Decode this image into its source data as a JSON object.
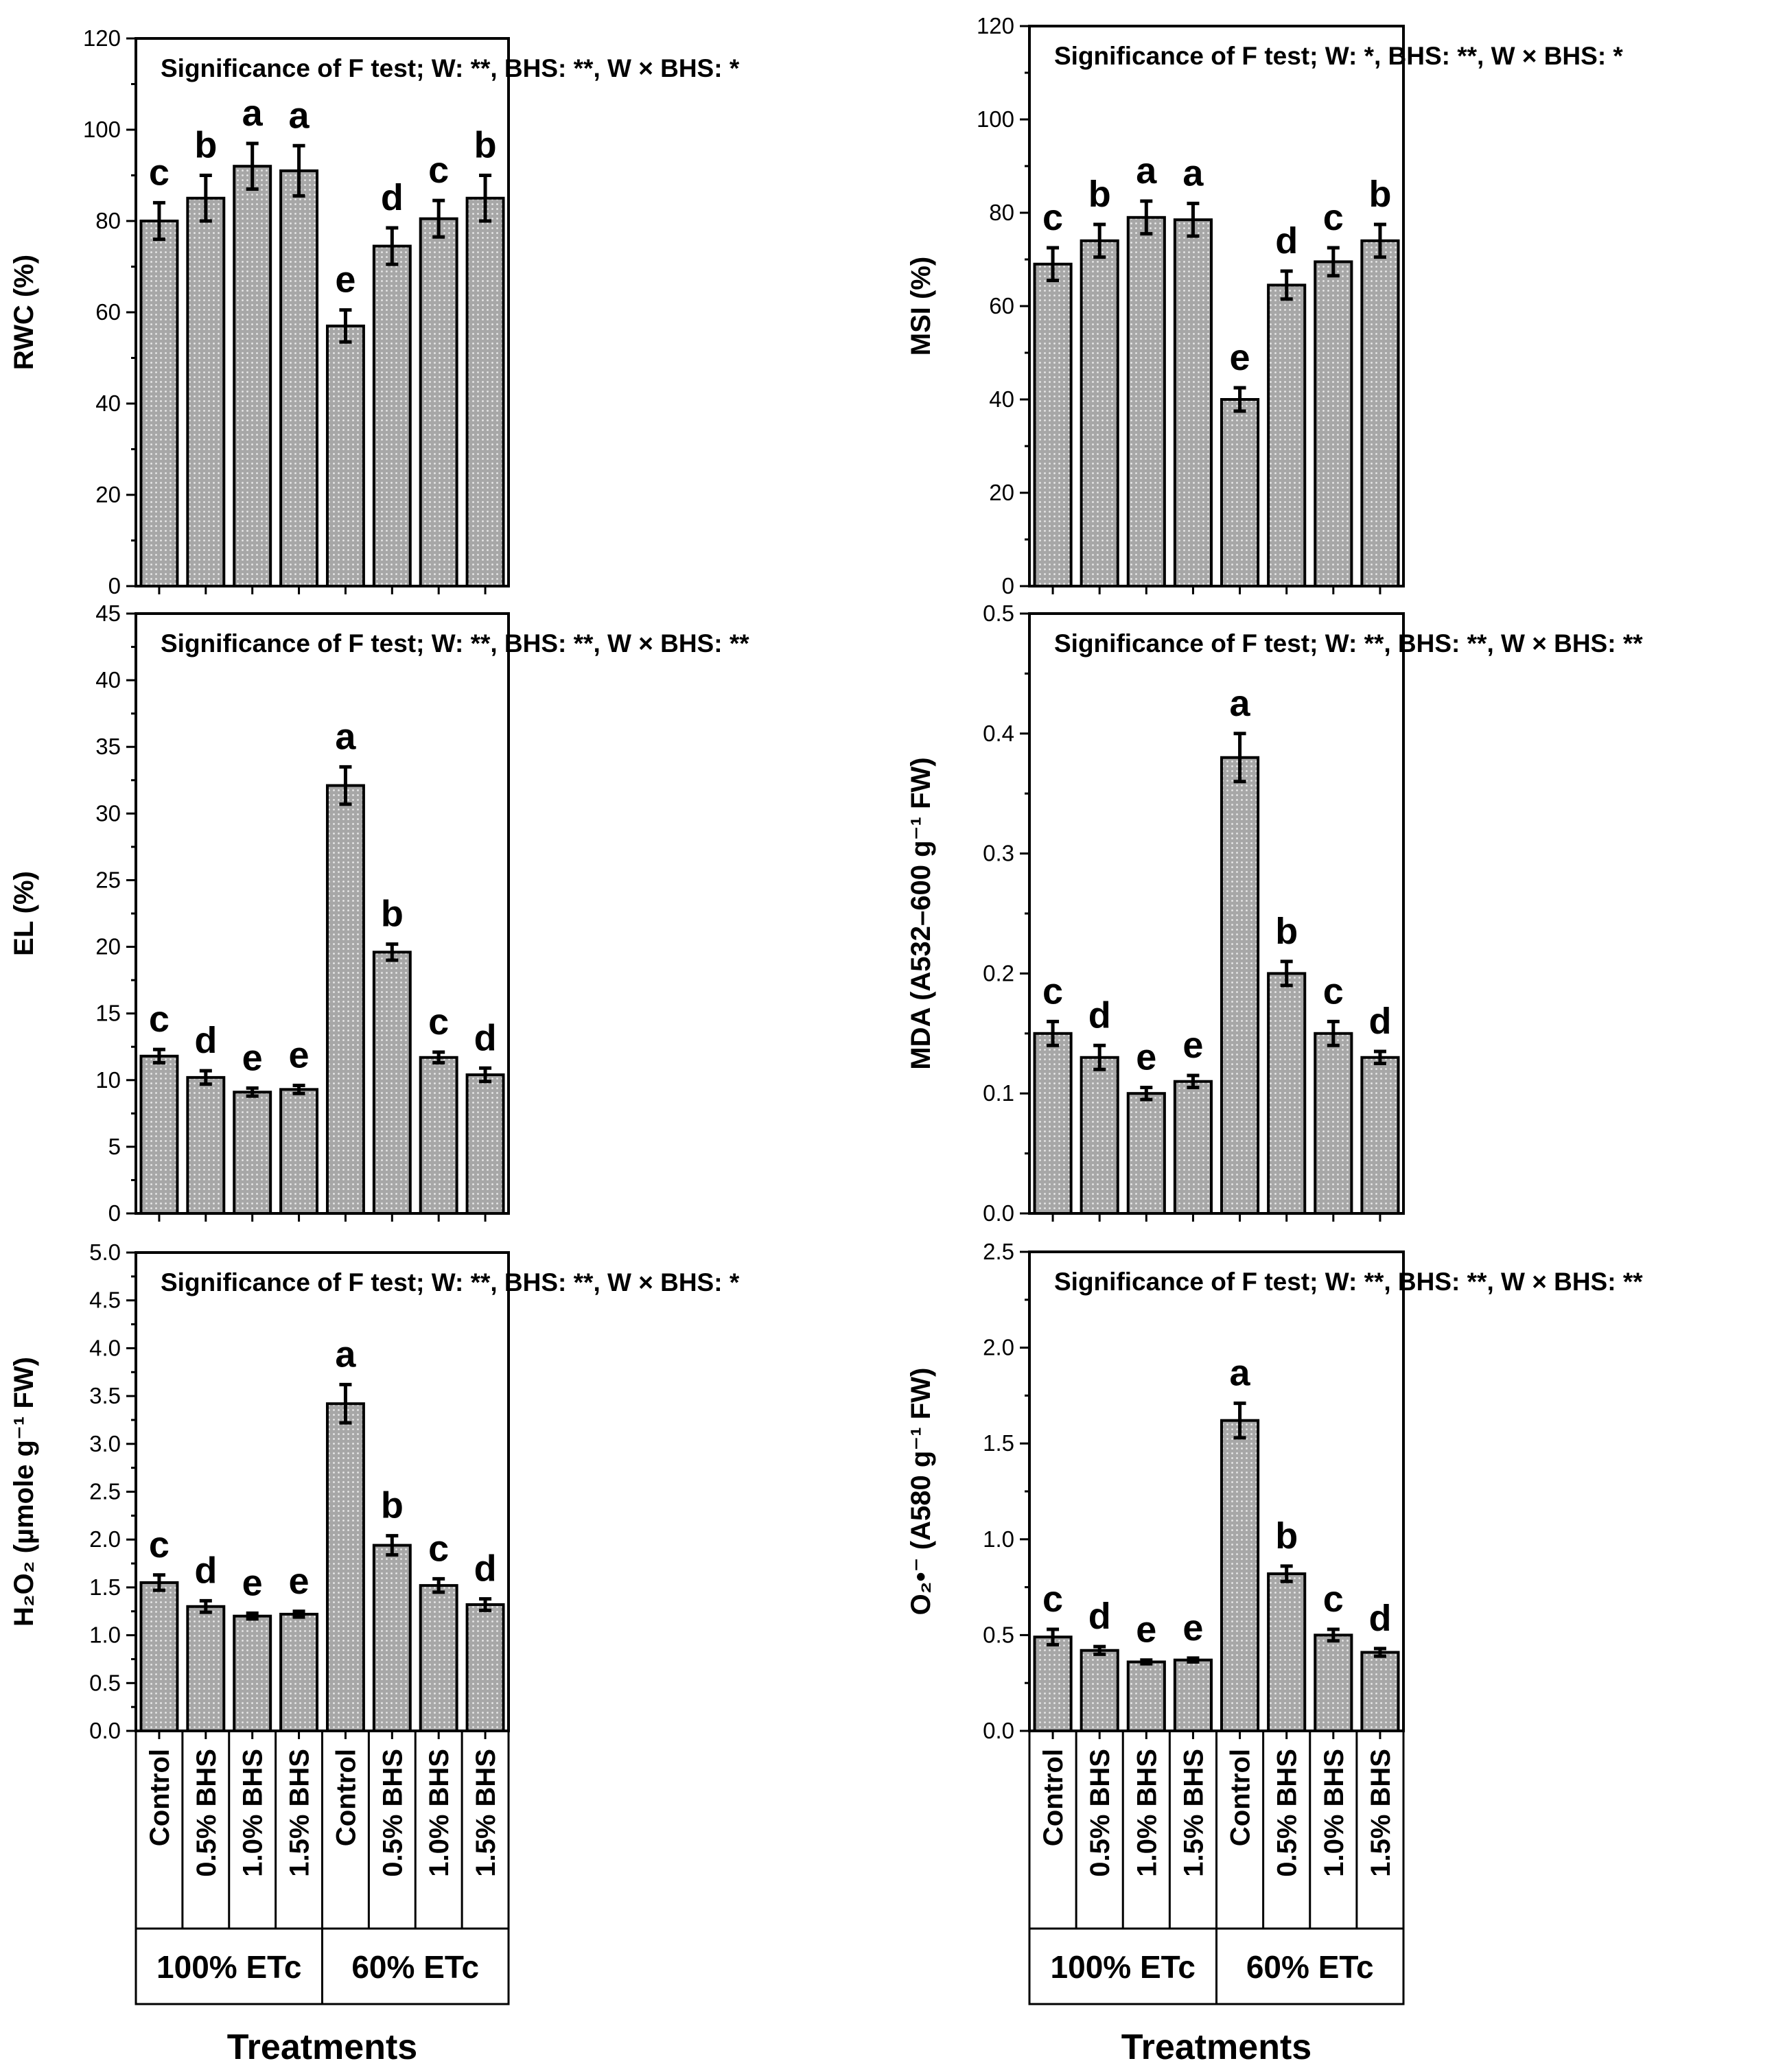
{
  "chart_data": [
    {
      "id": "rwc",
      "type": "bar",
      "title": "Significance of F test; W: **, BHS: **, W × BHS: *",
      "ylabel": "RWC (%)",
      "ylim": [
        0,
        120
      ],
      "yticks": [
        0,
        20,
        40,
        60,
        80,
        100,
        120
      ],
      "tick_decimals": 0,
      "categories": [
        "Control",
        "0.5% BHS",
        "1.0% BHS",
        "1.5% BHS",
        "Control",
        "0.5% BHS",
        "1.0% BHS",
        "1.5% BHS"
      ],
      "values": [
        80,
        85,
        92,
        91,
        57,
        74.5,
        80.5,
        85
      ],
      "errors": [
        4,
        5,
        5,
        5.5,
        3.5,
        4,
        4,
        5
      ],
      "letters": [
        "c",
        "b",
        "a",
        "a",
        "e",
        "d",
        "c",
        "b"
      ]
    },
    {
      "id": "msi",
      "type": "bar",
      "title": "Significance of F test; W: *, BHS: **, W × BHS: *",
      "ylabel": "MSI (%)",
      "ylim": [
        0,
        120
      ],
      "yticks": [
        0,
        20,
        40,
        60,
        80,
        100,
        120
      ],
      "tick_decimals": 0,
      "categories": [
        "Control",
        "0.5% BHS",
        "1.0% BHS",
        "1.5% BHS",
        "Control",
        "0.5% BHS",
        "1.0% BHS",
        "1.5% BHS"
      ],
      "values": [
        69,
        74,
        79,
        78.5,
        40,
        64.5,
        69.5,
        74
      ],
      "errors": [
        3.5,
        3.5,
        3.5,
        3.5,
        2.5,
        3,
        3,
        3.5
      ],
      "letters": [
        "c",
        "b",
        "a",
        "a",
        "e",
        "d",
        "c",
        "b"
      ]
    },
    {
      "id": "el",
      "type": "bar",
      "title": "Significance of F test; W: **, BHS: **, W × BHS: **",
      "ylabel": "EL (%)",
      "ylim": [
        0,
        45
      ],
      "yticks": [
        0,
        5,
        10,
        15,
        20,
        25,
        30,
        35,
        40,
        45
      ],
      "tick_decimals": 0,
      "categories": [
        "Control",
        "0.5% BHS",
        "1.0% BHS",
        "1.5% BHS",
        "Control",
        "0.5% BHS",
        "1.0% BHS",
        "1.5% BHS"
      ],
      "values": [
        11.8,
        10.2,
        9.1,
        9.3,
        32.1,
        19.6,
        11.7,
        10.4
      ],
      "errors": [
        0.5,
        0.5,
        0.3,
        0.3,
        1.4,
        0.6,
        0.4,
        0.5
      ],
      "letters": [
        "c",
        "d",
        "e",
        "e",
        "a",
        "b",
        "c",
        "d"
      ]
    },
    {
      "id": "mda",
      "type": "bar",
      "title": "Significance of F test; W: **, BHS: **, W × BHS: **",
      "ylabel": "MDA (A532–600 g⁻¹ FW)",
      "ylim": [
        0,
        0.5
      ],
      "yticks": [
        0,
        0.1,
        0.2,
        0.3,
        0.4,
        0.5
      ],
      "tick_decimals": 1,
      "categories": [
        "Control",
        "0.5% BHS",
        "1.0% BHS",
        "1.5% BHS",
        "Control",
        "0.5% BHS",
        "1.0% BHS",
        "1.5% BHS"
      ],
      "values": [
        0.15,
        0.13,
        0.1,
        0.11,
        0.38,
        0.2,
        0.15,
        0.13
      ],
      "errors": [
        0.01,
        0.01,
        0.005,
        0.005,
        0.02,
        0.01,
        0.01,
        0.005
      ],
      "letters": [
        "c",
        "d",
        "e",
        "e",
        "a",
        "b",
        "c",
        "d"
      ]
    },
    {
      "id": "h2o2",
      "type": "bar",
      "title": "Significance of F test; W: **, BHS: **, W × BHS: *",
      "ylabel": "H₂O₂ (µmole g⁻¹ FW)",
      "ylim": [
        0,
        5.0
      ],
      "yticks": [
        0,
        0.5,
        1.0,
        1.5,
        2.0,
        2.5,
        3.0,
        3.5,
        4.0,
        4.5,
        5.0
      ],
      "tick_decimals": 1,
      "categories": [
        "Control",
        "0.5% BHS",
        "1.0% BHS",
        "1.5% BHS",
        "Control",
        "0.5% BHS",
        "1.0% BHS",
        "1.5% BHS"
      ],
      "values": [
        1.55,
        1.3,
        1.2,
        1.22,
        3.42,
        1.94,
        1.52,
        1.32
      ],
      "errors": [
        0.08,
        0.06,
        0.03,
        0.03,
        0.2,
        0.1,
        0.07,
        0.06
      ],
      "letters": [
        "c",
        "d",
        "e",
        "e",
        "a",
        "b",
        "c",
        "d"
      ]
    },
    {
      "id": "o2",
      "type": "bar",
      "title": "Significance of F test; W: **, BHS: **, W × BHS: **",
      "ylabel": "O₂•⁻ (A580 g⁻¹ FW)",
      "ylim": [
        0,
        2.5
      ],
      "yticks": [
        0,
        0.5,
        1.0,
        1.5,
        2.0,
        2.5
      ],
      "tick_decimals": 1,
      "categories": [
        "Control",
        "0.5% BHS",
        "1.0% BHS",
        "1.5% BHS",
        "Control",
        "0.5% BHS",
        "1.0% BHS",
        "1.5% BHS"
      ],
      "values": [
        0.49,
        0.42,
        0.36,
        0.37,
        1.62,
        0.82,
        0.5,
        0.41
      ],
      "errors": [
        0.04,
        0.02,
        0.01,
        0.01,
        0.09,
        0.04,
        0.03,
        0.02
      ],
      "letters": [
        "c",
        "d",
        "e",
        "e",
        "a",
        "b",
        "c",
        "d"
      ]
    }
  ],
  "x_axis": {
    "categories": [
      "Control",
      "0.5% BHS",
      "1.0% BHS",
      "1.5% BHS",
      "Control",
      "0.5% BHS",
      "1.0% BHS",
      "1.5% BHS"
    ],
    "groups": [
      "100% ETc",
      "60% ETc"
    ],
    "title": "Treatments"
  },
  "colors": {
    "bar_fill": "#a7a7a7",
    "bar_dot": "#e9e9e9",
    "line": "#000000"
  }
}
